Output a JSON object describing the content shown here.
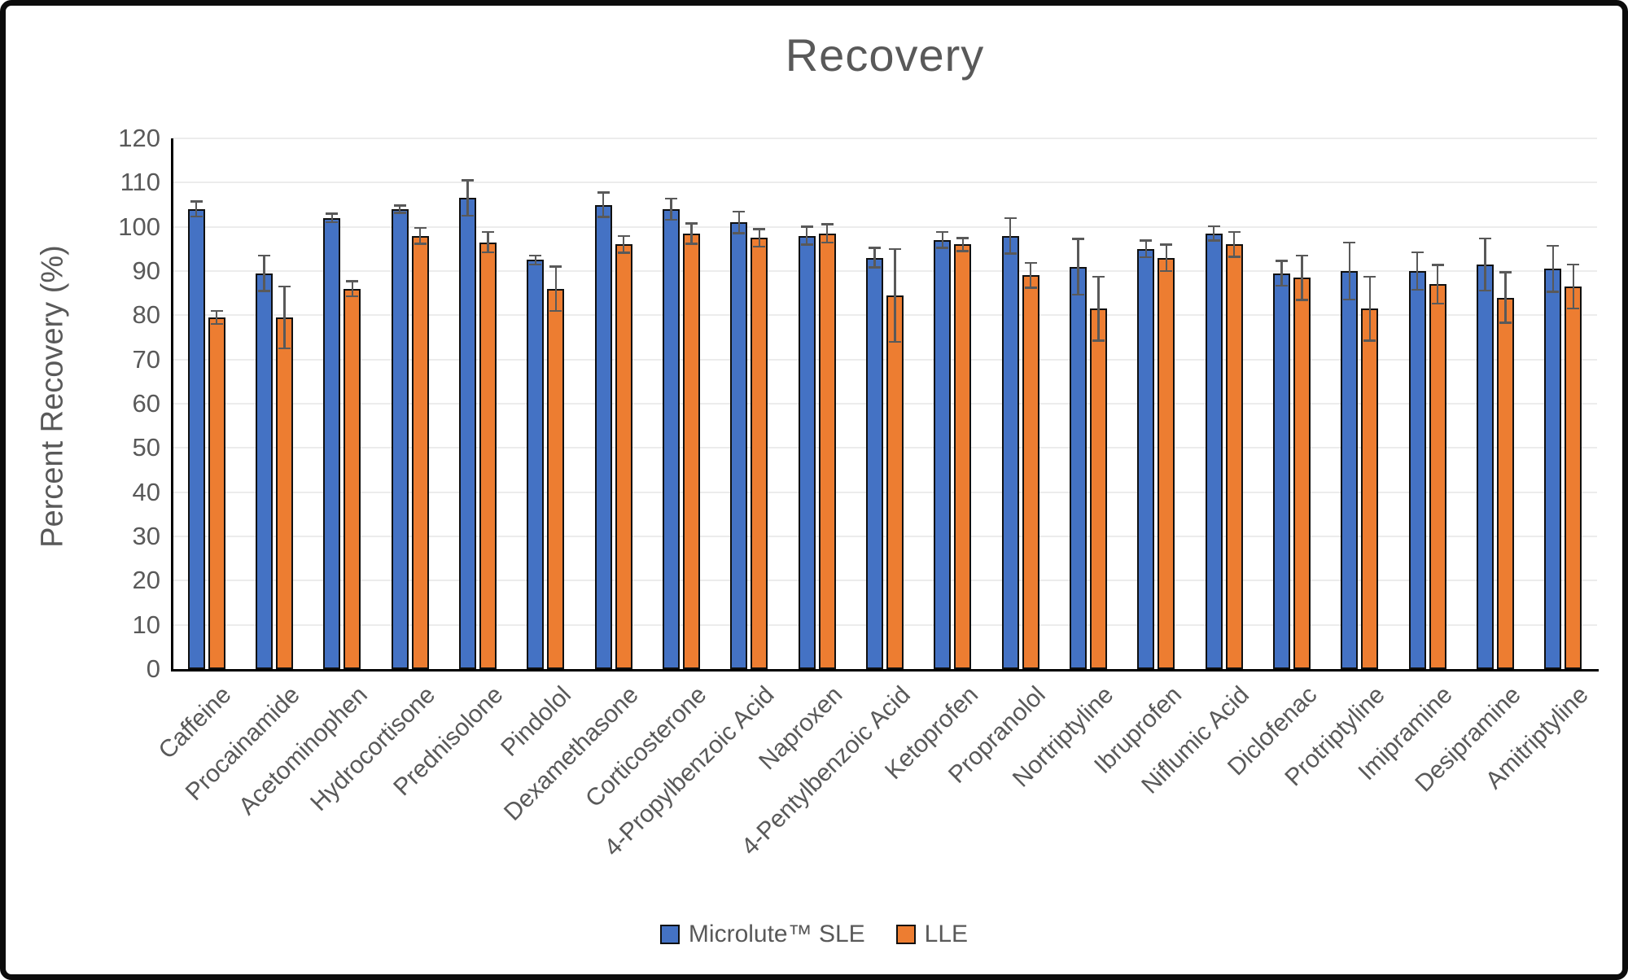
{
  "chart_data": {
    "type": "bar",
    "title": "Recovery",
    "ylabel": "Percent Recovery (%)",
    "ylim": [
      0,
      120
    ],
    "ytick_step": 10,
    "grid": true,
    "legend_position": "bottom",
    "categories": [
      "Caffeine",
      "Procainamide",
      "Acetominophen",
      "Hydrocortisone",
      "Prednisolone",
      "Pindolol",
      "Dexamethasone",
      "Corticosterone",
      "4-Propylbenzoic Acid",
      "Naproxen",
      "4-Pentylbenzoic Acid",
      "Ketoprofen",
      "Propranolol",
      "Nortriptyline",
      "Ibruprofen",
      "Niflumic Acid",
      "Diclofenac",
      "Protriptyline",
      "Imipramine",
      "Desipramine",
      "Amitriptyline"
    ],
    "series": [
      {
        "name": "Microlute™ SLE",
        "color": "#4472C4",
        "values": [
          104,
          89.5,
          102,
          104,
          106.5,
          92.5,
          105,
          104,
          101,
          98,
          93,
          97,
          98,
          91,
          95,
          98.5,
          89.5,
          90,
          90,
          91.5,
          90.5
        ],
        "errors": [
          1.7,
          4,
          1,
          0.8,
          4,
          1,
          2.8,
          2.4,
          2.4,
          2,
          2.2,
          1.8,
          4,
          6.3,
          1.9,
          1.6,
          2.8,
          6.4,
          4.2,
          5.9,
          5.2
        ]
      },
      {
        "name": "LLE",
        "color": "#ED7D31",
        "values": [
          79.5,
          79.5,
          86,
          98,
          96.5,
          86,
          96,
          98.5,
          97.5,
          98.5,
          84.5,
          96,
          89,
          81.5,
          93,
          96,
          88.5,
          81.5,
          87,
          84,
          86.5
        ],
        "errors": [
          1.5,
          7,
          1.7,
          1.8,
          2.3,
          5,
          1.9,
          2.3,
          2,
          2.1,
          10.5,
          1.5,
          2.8,
          7.2,
          3,
          2.8,
          5,
          7.2,
          4.4,
          5.7,
          5
        ]
      }
    ],
    "error_bar_color": "#595959",
    "axis_color": "#000000",
    "gridline_color": "#ececec",
    "text_color": "#595959"
  }
}
